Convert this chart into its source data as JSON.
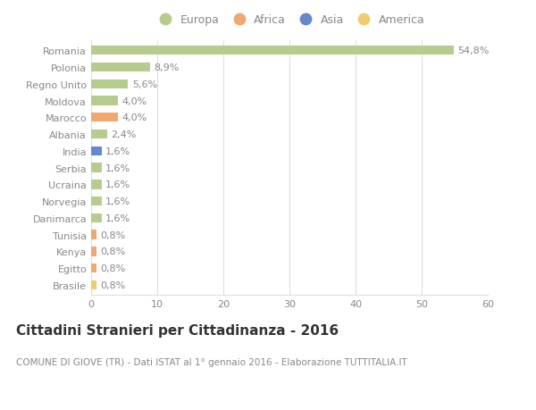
{
  "countries": [
    "Romania",
    "Polonia",
    "Regno Unito",
    "Moldova",
    "Marocco",
    "Albania",
    "India",
    "Serbia",
    "Ucraina",
    "Norvegia",
    "Danimarca",
    "Tunisia",
    "Kenya",
    "Egitto",
    "Brasile"
  ],
  "values": [
    54.8,
    8.9,
    5.6,
    4.0,
    4.0,
    2.4,
    1.6,
    1.6,
    1.6,
    1.6,
    1.6,
    0.8,
    0.8,
    0.8,
    0.8
  ],
  "labels": [
    "54,8%",
    "8,9%",
    "5,6%",
    "4,0%",
    "4,0%",
    "2,4%",
    "1,6%",
    "1,6%",
    "1,6%",
    "1,6%",
    "1,6%",
    "0,8%",
    "0,8%",
    "0,8%",
    "0,8%"
  ],
  "continents": [
    "Europa",
    "Europa",
    "Europa",
    "Europa",
    "Africa",
    "Europa",
    "Asia",
    "Europa",
    "Europa",
    "Europa",
    "Europa",
    "Africa",
    "Africa",
    "Africa",
    "America"
  ],
  "continent_colors": {
    "Europa": "#b5cc8e",
    "Africa": "#f0a870",
    "Asia": "#6688cc",
    "America": "#f0cc70"
  },
  "legend_order": [
    "Europa",
    "Africa",
    "Asia",
    "America"
  ],
  "title": "Cittadini Stranieri per Cittadinanza - 2016",
  "subtitle": "COMUNE DI GIOVE (TR) - Dati ISTAT al 1° gennaio 2016 - Elaborazione TUTTITALIA.IT",
  "xlim": [
    0,
    60
  ],
  "xticks": [
    0,
    10,
    20,
    30,
    40,
    50,
    60
  ],
  "background_color": "#ffffff",
  "grid_color": "#e0e0e0",
  "bar_height": 0.55,
  "label_fontsize": 8,
  "tick_fontsize": 8,
  "title_fontsize": 11,
  "subtitle_fontsize": 7.5,
  "text_color": "#888888"
}
